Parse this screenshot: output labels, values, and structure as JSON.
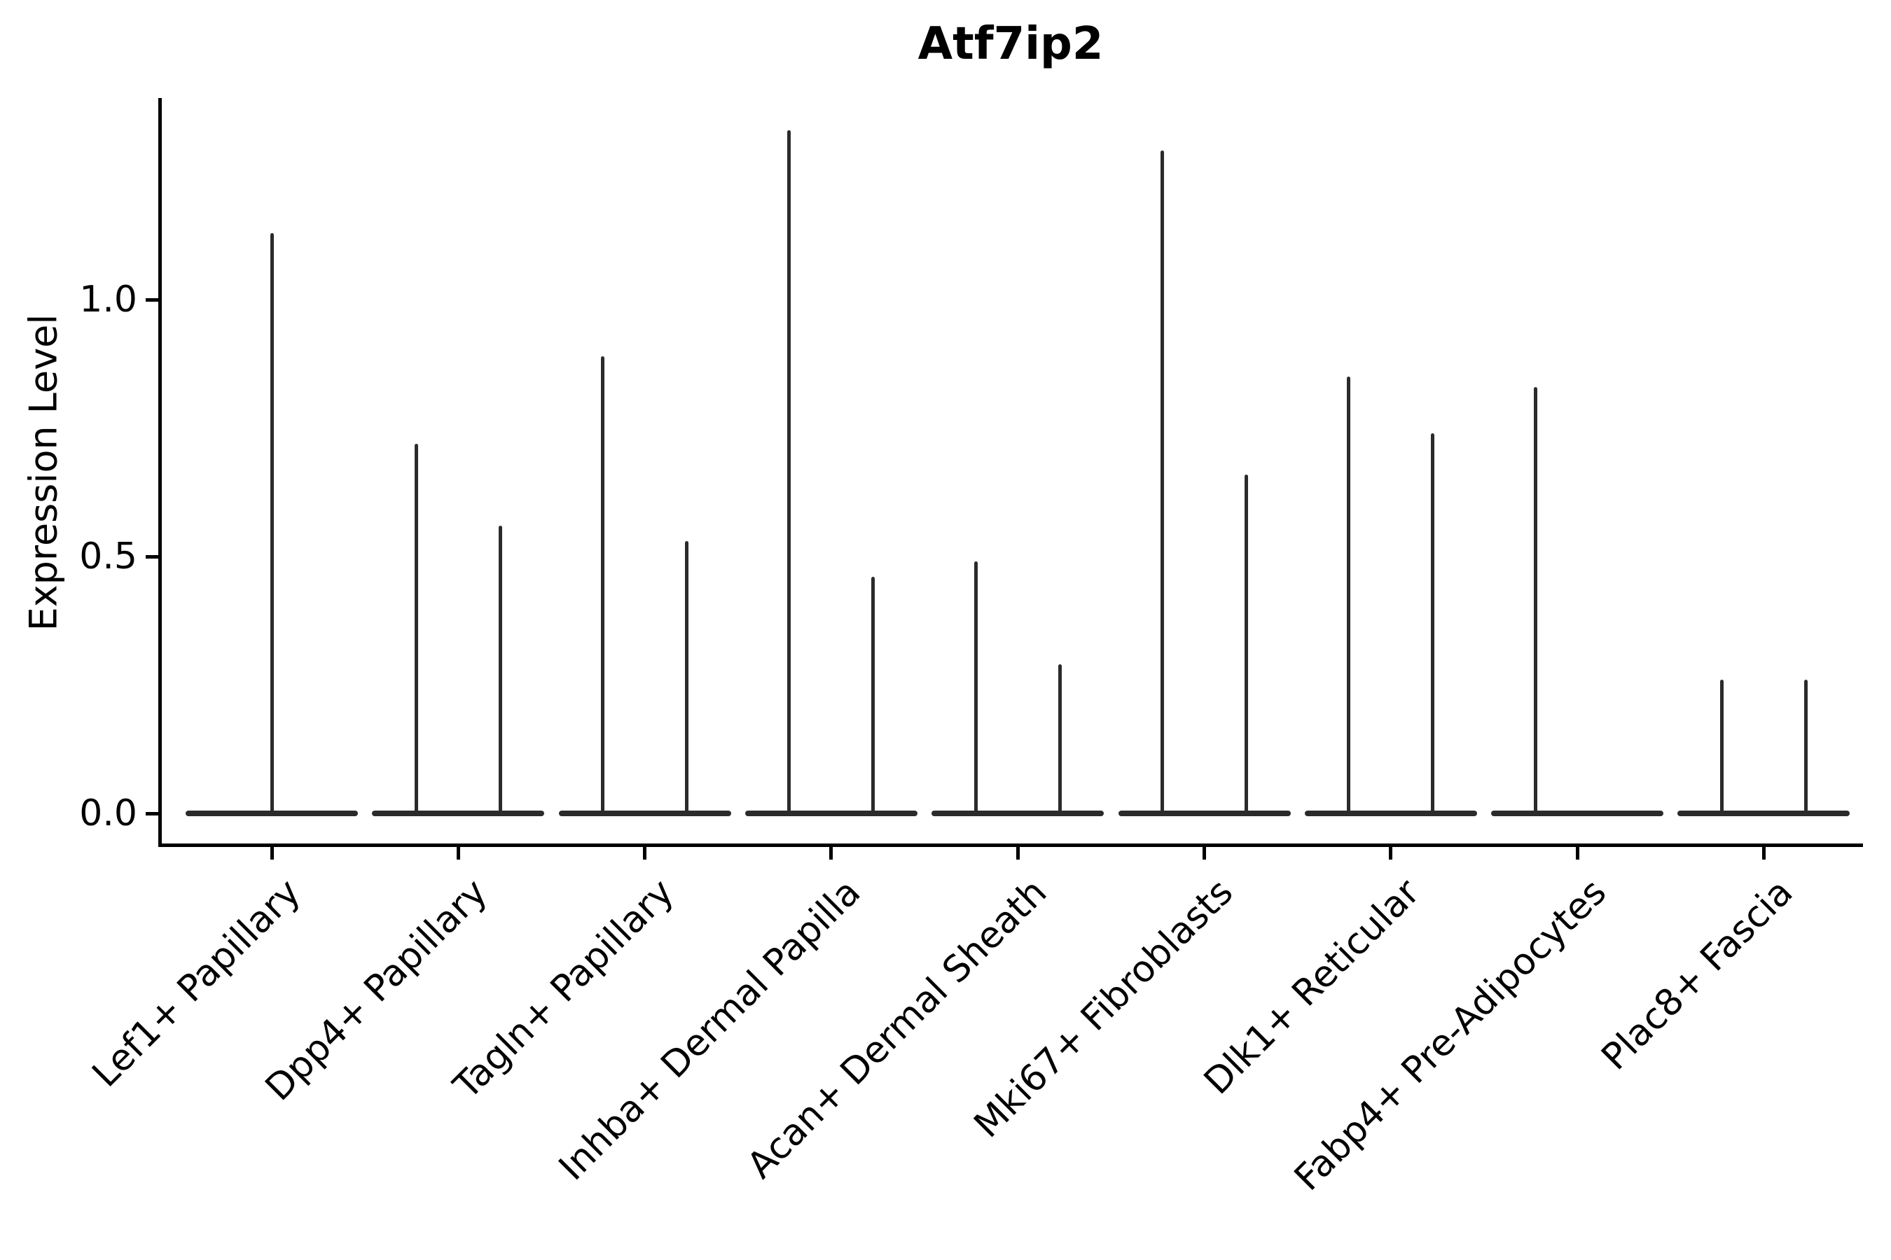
{
  "chart_data": {
    "type": "violin",
    "title": "Atf7ip2",
    "ylabel": "Expression Level",
    "xlabel": "",
    "ylim": [
      0,
      1.39
    ],
    "grid": false,
    "legend": "none",
    "yticks": [
      {
        "label": "0.0",
        "value": 0.0
      },
      {
        "label": "0.5",
        "value": 0.5
      },
      {
        "label": "1.0",
        "value": 1.0
      }
    ],
    "categories": [
      "Lef1+ Papillary",
      "Dpp4+ Papillary",
      "Tagln+ Papillary",
      "Inhba+ Dermal Papilla",
      "Acan+ Dermal Sheath",
      "Mki67+ Fibroblasts",
      "Dlk1+ Reticular",
      "Fabp4+ Pre-Adipocytes",
      "Plac8+ Fascia"
    ],
    "violins": [
      {
        "category": "Lef1+ Papillary",
        "spikes": [
          {
            "position": "center",
            "max": 1.13
          }
        ]
      },
      {
        "category": "Dpp4+ Papillary",
        "spikes": [
          {
            "position": "left",
            "max": 0.72
          },
          {
            "position": "right",
            "max": 0.56
          }
        ]
      },
      {
        "category": "Tagln+ Papillary",
        "spikes": [
          {
            "position": "left",
            "max": 0.89
          },
          {
            "position": "right",
            "max": 0.53
          }
        ]
      },
      {
        "category": "Inhba+ Dermal Papilla",
        "spikes": [
          {
            "position": "left",
            "max": 1.33
          },
          {
            "position": "right",
            "max": 0.46
          }
        ]
      },
      {
        "category": "Acan+ Dermal Sheath",
        "spikes": [
          {
            "position": "left",
            "max": 0.49
          },
          {
            "position": "right",
            "max": 0.29
          }
        ]
      },
      {
        "category": "Mki67+ Fibroblasts",
        "spikes": [
          {
            "position": "left",
            "max": 1.29
          },
          {
            "position": "right",
            "max": 0.66
          }
        ]
      },
      {
        "category": "Dlk1+ Reticular",
        "spikes": [
          {
            "position": "left",
            "max": 0.85
          },
          {
            "position": "right",
            "max": 0.74
          }
        ]
      },
      {
        "category": "Fabp4+ Pre-Adipocytes",
        "spikes": [
          {
            "position": "left",
            "max": 0.83
          }
        ]
      },
      {
        "category": "Plac8+ Fascia",
        "spikes": [
          {
            "position": "left",
            "max": 0.26
          },
          {
            "position": "right",
            "max": 0.26
          }
        ]
      }
    ],
    "colors": {
      "violin": "#2b2b2b",
      "axis": "#000000",
      "background": "#ffffff"
    }
  }
}
